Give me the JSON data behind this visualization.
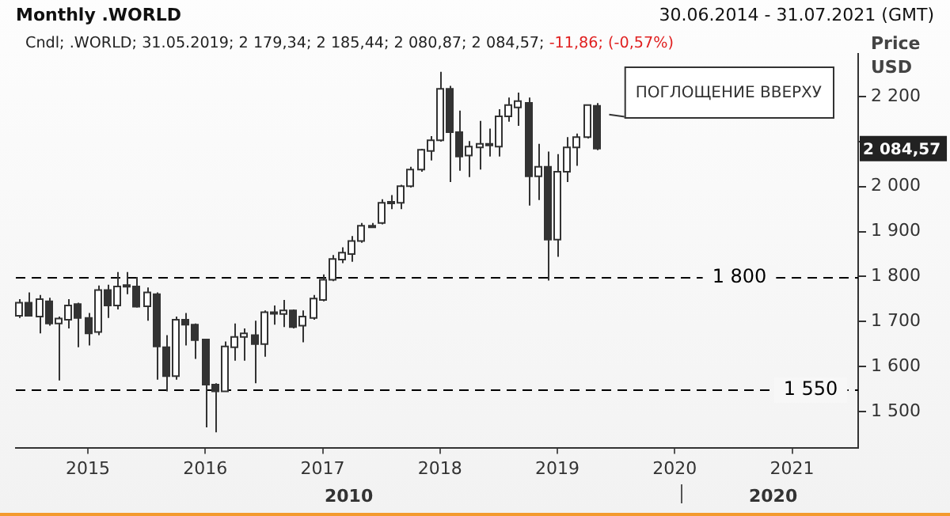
{
  "chart_data": {
    "type": "candlestick",
    "title": "Monthly .WORLD",
    "subtitle": "30.06.2014 - 31.07.2021 (GMT)",
    "ylabel": "Price USD",
    "x": [
      "2014-06",
      "2014-07",
      "2014-08",
      "2014-09",
      "2014-10",
      "2014-11",
      "2014-12",
      "2015-01",
      "2015-02",
      "2015-03",
      "2015-04",
      "2015-05",
      "2015-06",
      "2015-07",
      "2015-08",
      "2015-09",
      "2015-10",
      "2015-11",
      "2015-12",
      "2016-01",
      "2016-02",
      "2016-03",
      "2016-04",
      "2016-05",
      "2016-06",
      "2016-07",
      "2016-08",
      "2016-09",
      "2016-10",
      "2016-11",
      "2016-12",
      "2017-01",
      "2017-02",
      "2017-03",
      "2017-04",
      "2017-05",
      "2017-06",
      "2017-07",
      "2017-08",
      "2017-09",
      "2017-10",
      "2017-11",
      "2017-12",
      "2018-01",
      "2018-02",
      "2018-03",
      "2018-04",
      "2018-05",
      "2018-06",
      "2018-07",
      "2018-08",
      "2018-09",
      "2018-10",
      "2018-11",
      "2018-12",
      "2019-01",
      "2019-02",
      "2019-03",
      "2019-04",
      "2019-05"
    ],
    "ohlc": [
      [
        1713,
        1750,
        1708,
        1742
      ],
      [
        1742,
        1765,
        1711,
        1713
      ],
      [
        1711,
        1759,
        1674,
        1750
      ],
      [
        1745,
        1753,
        1691,
        1696
      ],
      [
        1696,
        1711,
        1569,
        1707
      ],
      [
        1704,
        1750,
        1685,
        1736
      ],
      [
        1739,
        1742,
        1643,
        1708
      ],
      [
        1708,
        1719,
        1647,
        1674
      ],
      [
        1677,
        1780,
        1670,
        1770
      ],
      [
        1770,
        1782,
        1708,
        1736
      ],
      [
        1736,
        1810,
        1727,
        1778
      ],
      [
        1778,
        1810,
        1761,
        1781
      ],
      [
        1778,
        1799,
        1731,
        1733
      ],
      [
        1734,
        1776,
        1702,
        1765
      ],
      [
        1761,
        1765,
        1571,
        1645
      ],
      [
        1643,
        1670,
        1545,
        1579
      ],
      [
        1579,
        1711,
        1571,
        1704
      ],
      [
        1704,
        1719,
        1647,
        1693
      ],
      [
        1693,
        1696,
        1617,
        1659
      ],
      [
        1660,
        1660,
        1465,
        1560
      ],
      [
        1560,
        1563,
        1454,
        1545
      ],
      [
        1545,
        1656,
        1545,
        1645
      ],
      [
        1643,
        1696,
        1613,
        1666
      ],
      [
        1666,
        1685,
        1613,
        1674
      ],
      [
        1670,
        1702,
        1563,
        1650
      ],
      [
        1650,
        1725,
        1622,
        1721
      ],
      [
        1721,
        1736,
        1693,
        1719
      ],
      [
        1717,
        1748,
        1688,
        1725
      ],
      [
        1725,
        1727,
        1685,
        1688
      ],
      [
        1691,
        1725,
        1654,
        1711
      ],
      [
        1708,
        1759,
        1704,
        1751
      ],
      [
        1748,
        1805,
        1745,
        1793
      ],
      [
        1793,
        1848,
        1790,
        1839
      ],
      [
        1838,
        1865,
        1830,
        1853
      ],
      [
        1850,
        1890,
        1833,
        1879
      ],
      [
        1879,
        1919,
        1875,
        1913
      ],
      [
        1912,
        1919,
        1908,
        1913
      ],
      [
        1919,
        1972,
        1916,
        1964
      ],
      [
        1964,
        1981,
        1950,
        1966
      ],
      [
        1964,
        2004,
        1950,
        2001
      ],
      [
        2001,
        2044,
        1998,
        2038
      ],
      [
        2038,
        2084,
        2033,
        2082
      ],
      [
        2079,
        2112,
        2058,
        2103
      ],
      [
        2103,
        2255,
        2100,
        2217
      ],
      [
        2217,
        2224,
        2010,
        2121
      ],
      [
        2121,
        2169,
        2035,
        2067
      ],
      [
        2069,
        2101,
        2021,
        2089
      ],
      [
        2087,
        2146,
        2038,
        2095
      ],
      [
        2095,
        2129,
        2067,
        2093
      ],
      [
        2089,
        2172,
        2067,
        2156
      ],
      [
        2156,
        2198,
        2144,
        2181
      ],
      [
        2176,
        2209,
        2135,
        2190
      ],
      [
        2186,
        2198,
        1958,
        2023
      ],
      [
        2023,
        2095,
        1970,
        2044
      ],
      [
        2044,
        2078,
        1791,
        1882
      ],
      [
        1882,
        2072,
        1844,
        2033
      ],
      [
        2033,
        2110,
        2010,
        2087
      ],
      [
        2087,
        2118,
        2046,
        2110
      ],
      [
        2110,
        2183,
        2107,
        2181
      ],
      [
        2179.34,
        2185.44,
        2080.87,
        2084.57
      ]
    ],
    "xlim": [
      "2014-05-20",
      "2021-07-24"
    ],
    "xticks": [
      "2015",
      "2016",
      "2017",
      "2018",
      "2019",
      "2020",
      "2021"
    ],
    "ylim": [
      1420,
      2295
    ],
    "yticks": [
      {
        "value": 1500,
        "label": "1 500"
      },
      {
        "value": 1600,
        "label": "1 600"
      },
      {
        "value": 1700,
        "label": "1 700"
      },
      {
        "value": 1800,
        "label": "1 800"
      },
      {
        "value": 1900,
        "label": "1 900"
      },
      {
        "value": 2000,
        "label": "2 000"
      },
      {
        "value": 2100,
        "label": null
      },
      {
        "value": 2200,
        "label": "2 200"
      }
    ],
    "ref_lines": [
      {
        "axis": "y",
        "value": 1800,
        "label": "1 800",
        "line_style": "dashed",
        "color": "#000000"
      },
      {
        "axis": "y",
        "value": 1550,
        "label": "1 550",
        "line_style": "dashed",
        "color": "#000000"
      }
    ],
    "annotations": [
      "Cndl; .WORLD; 31.05.2019; 2 179,34; 2 185,44; 2 080,87; 2 084,57; -11,86; (-0,57%)",
      "ПОГЛОЩЕНИЕ ВВЕРХУ",
      "2 084,57",
      "2010",
      "2020"
    ],
    "grid": false,
    "legend": false
  }
}
